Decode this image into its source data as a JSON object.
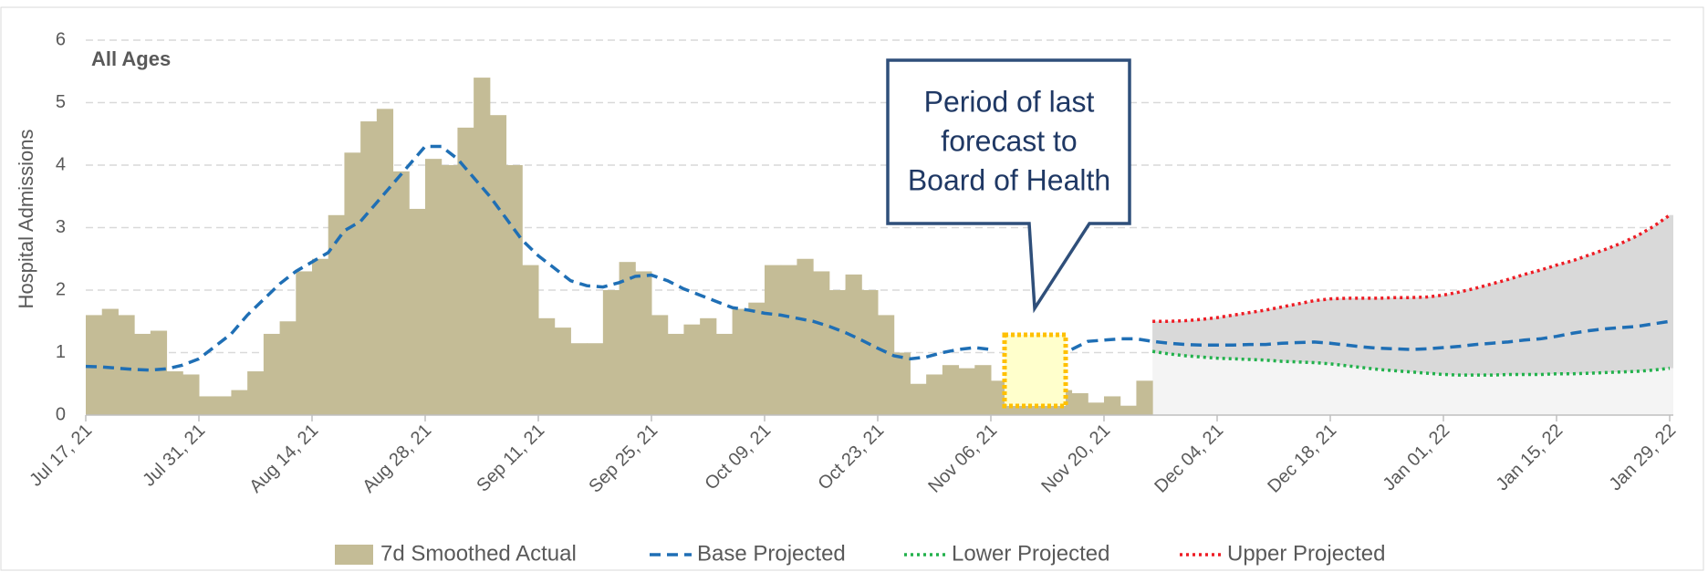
{
  "chart_data": {
    "type": "combo",
    "subtitle": "All Ages",
    "ylabel": "Hospital Admissions",
    "annotation": [
      "Period of last",
      "forecast to",
      "Board of Health"
    ],
    "ylim": [
      0,
      6
    ],
    "yticks": [
      0,
      1,
      2,
      3,
      4,
      5,
      6
    ],
    "grid": true,
    "legend": "bottom",
    "categories": [
      "Jul 17, 21",
      null,
      null,
      null,
      null,
      null,
      null,
      "Jul 31, 21",
      null,
      null,
      null,
      null,
      null,
      null,
      "Aug 14, 21",
      null,
      null,
      null,
      null,
      null,
      null,
      "Aug 28, 21",
      null,
      null,
      null,
      null,
      null,
      null,
      "Sep 11, 21",
      null,
      null,
      null,
      null,
      null,
      null,
      "Sep 25, 21",
      null,
      null,
      null,
      null,
      null,
      null,
      "Oct 09, 21",
      null,
      null,
      null,
      null,
      null,
      null,
      "Oct 23, 21",
      null,
      null,
      null,
      null,
      null,
      null,
      "Nov 06, 21",
      null,
      null,
      null,
      null,
      null,
      null,
      "Nov 20, 21",
      null,
      null,
      null,
      null,
      null,
      null,
      "Dec 04, 21",
      null,
      null,
      null,
      null,
      null,
      null,
      "Dec 18, 21",
      null,
      null,
      null,
      null,
      null,
      null,
      "Jan 01, 22",
      null,
      null,
      null,
      null,
      null,
      null,
      "Jan 15, 22",
      null,
      null,
      null,
      null,
      null,
      null,
      "Jan 29, 22"
    ],
    "series": [
      {
        "name": "7d Smoothed Actual",
        "type": "bar",
        "color": "#c4bc96",
        "values": [
          1.6,
          1.7,
          1.6,
          1.3,
          1.35,
          0.7,
          0.65,
          0.3,
          0.3,
          0.4,
          0.7,
          1.3,
          1.5,
          2.3,
          2.5,
          3.2,
          4.2,
          4.7,
          4.9,
          3.9,
          3.3,
          4.1,
          4.0,
          4.6,
          5.4,
          4.8,
          4.0,
          2.4,
          1.55,
          1.4,
          1.15,
          1.15,
          2.0,
          2.45,
          2.3,
          1.6,
          1.3,
          1.45,
          1.55,
          1.3,
          1.7,
          1.8,
          2.4,
          2.4,
          2.5,
          2.3,
          2.0,
          2.25,
          2.0,
          1.6,
          1.0,
          0.5,
          0.65,
          0.8,
          0.75,
          0.8,
          0.55,
          0.4,
          0.4,
          0.4,
          0.4,
          0.35,
          0.2,
          0.3,
          0.15,
          0.55,
          null,
          null,
          null,
          null,
          null,
          null,
          null,
          null,
          null,
          null,
          null,
          null,
          null,
          null,
          null,
          null,
          null,
          null,
          null,
          null,
          null,
          null,
          null,
          null,
          null,
          null,
          null,
          null,
          null,
          null,
          null,
          null,
          null
        ]
      },
      {
        "name": "Base Projected",
        "type": "line",
        "style": "dashed",
        "color": "#1f6fb5",
        "values": [
          0.78,
          0.77,
          0.75,
          0.73,
          0.72,
          0.74,
          0.8,
          0.9,
          1.1,
          1.3,
          1.6,
          1.85,
          2.1,
          2.3,
          2.45,
          2.6,
          2.95,
          3.1,
          3.4,
          3.7,
          4.0,
          4.3,
          4.3,
          4.1,
          3.8,
          3.5,
          3.15,
          2.8,
          2.55,
          2.35,
          2.15,
          2.07,
          2.05,
          2.12,
          2.22,
          2.24,
          2.15,
          2.02,
          1.92,
          1.82,
          1.72,
          1.68,
          1.63,
          1.6,
          1.55,
          1.5,
          1.42,
          1.32,
          1.2,
          1.07,
          0.95,
          0.9,
          0.93,
          1.0,
          1.05,
          1.08,
          1.05,
          null,
          null,
          null,
          null,
          1.05,
          1.18,
          1.2,
          1.22,
          1.22,
          1.18,
          1.15,
          1.13,
          1.12,
          1.12,
          1.12,
          1.13,
          1.13,
          1.15,
          1.16,
          1.17,
          1.15,
          1.12,
          1.09,
          1.07,
          1.06,
          1.05,
          1.06,
          1.08,
          1.1,
          1.13,
          1.15,
          1.17,
          1.2,
          1.22,
          1.26,
          1.31,
          1.35,
          1.38,
          1.4,
          1.42,
          1.46,
          1.5
        ]
      },
      {
        "name": "Lower Projected",
        "type": "line",
        "style": "dotted",
        "color": "#22b14c",
        "values": [
          null,
          null,
          null,
          null,
          null,
          null,
          null,
          null,
          null,
          null,
          null,
          null,
          null,
          null,
          null,
          null,
          null,
          null,
          null,
          null,
          null,
          null,
          null,
          null,
          null,
          null,
          null,
          null,
          null,
          null,
          null,
          null,
          null,
          null,
          null,
          null,
          null,
          null,
          null,
          null,
          null,
          null,
          null,
          null,
          null,
          null,
          null,
          null,
          null,
          null,
          null,
          null,
          null,
          null,
          null,
          null,
          null,
          null,
          null,
          null,
          null,
          null,
          null,
          null,
          null,
          null,
          1.02,
          0.98,
          0.95,
          0.93,
          0.91,
          0.9,
          0.89,
          0.88,
          0.86,
          0.85,
          0.84,
          0.82,
          0.79,
          0.76,
          0.73,
          0.71,
          0.69,
          0.67,
          0.65,
          0.64,
          0.64,
          0.64,
          0.65,
          0.65,
          0.65,
          0.66,
          0.66,
          0.67,
          0.68,
          0.69,
          0.7,
          0.72,
          0.75
        ]
      },
      {
        "name": "Upper Projected",
        "type": "line",
        "style": "dotted",
        "color": "#ee1c24",
        "values": [
          null,
          null,
          null,
          null,
          null,
          null,
          null,
          null,
          null,
          null,
          null,
          null,
          null,
          null,
          null,
          null,
          null,
          null,
          null,
          null,
          null,
          null,
          null,
          null,
          null,
          null,
          null,
          null,
          null,
          null,
          null,
          null,
          null,
          null,
          null,
          null,
          null,
          null,
          null,
          null,
          null,
          null,
          null,
          null,
          null,
          null,
          null,
          null,
          null,
          null,
          null,
          null,
          null,
          null,
          null,
          null,
          null,
          null,
          null,
          null,
          null,
          null,
          null,
          null,
          null,
          null,
          1.5,
          1.5,
          1.51,
          1.53,
          1.56,
          1.6,
          1.64,
          1.68,
          1.73,
          1.78,
          1.83,
          1.86,
          1.87,
          1.87,
          1.87,
          1.88,
          1.88,
          1.89,
          1.92,
          1.97,
          2.03,
          2.1,
          2.17,
          2.25,
          2.32,
          2.4,
          2.47,
          2.56,
          2.65,
          2.75,
          2.87,
          3.02,
          3.2
        ]
      }
    ]
  }
}
